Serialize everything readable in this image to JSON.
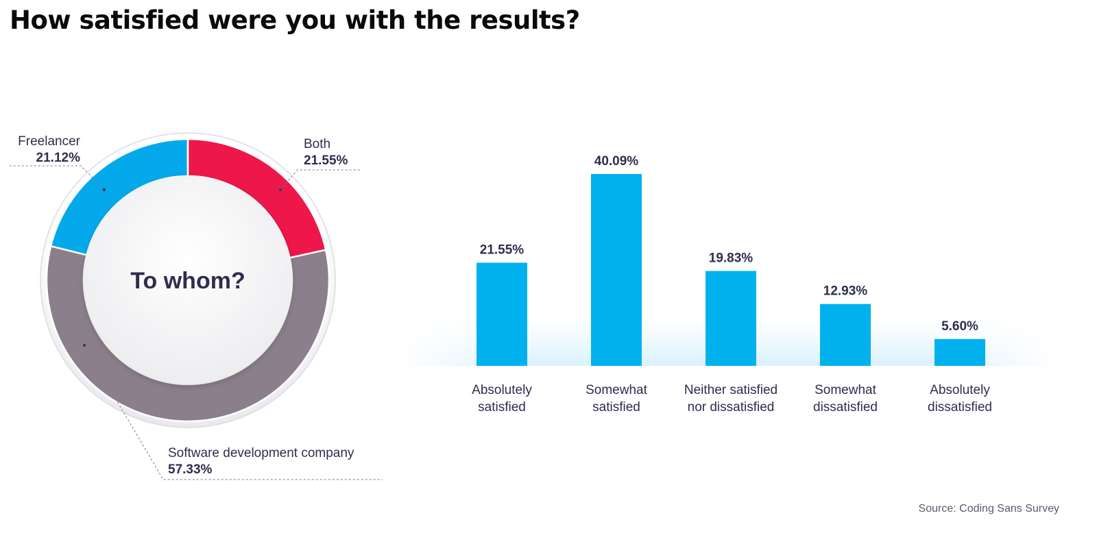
{
  "title": "How satisfied were you with the results?",
  "source": "Source: Coding Sans Survey",
  "colors": {
    "freelancer": "#03a9ea",
    "both": "#ed1849",
    "company": "#8b7f8c",
    "bar": "#00b1ee",
    "text": "#2e2d4d"
  },
  "chart_data": [
    {
      "type": "pie",
      "title": "To whom?",
      "slices": [
        {
          "label": "Freelancer",
          "value": 21.12,
          "value_label": "21.12%"
        },
        {
          "label": "Both",
          "value": 21.55,
          "value_label": "21.55%"
        },
        {
          "label": "Software development company",
          "value": 57.33,
          "value_label": "57.33%"
        }
      ]
    },
    {
      "type": "bar",
      "categories": [
        [
          "Absolutely",
          "satisfied"
        ],
        [
          "Somewhat",
          "satisfied"
        ],
        [
          "Neither satisfied",
          "nor dissatisfied"
        ],
        [
          "Somewhat",
          "dissatisfied"
        ],
        [
          "Absolutely",
          "dissatisfied"
        ]
      ],
      "values": [
        21.55,
        40.09,
        19.83,
        12.93,
        5.6
      ],
      "value_labels": [
        "21.55%",
        "40.09%",
        "19.83%",
        "12.93%",
        "5.60%"
      ],
      "ylim": [
        0,
        40.09
      ],
      "grid": false
    }
  ]
}
